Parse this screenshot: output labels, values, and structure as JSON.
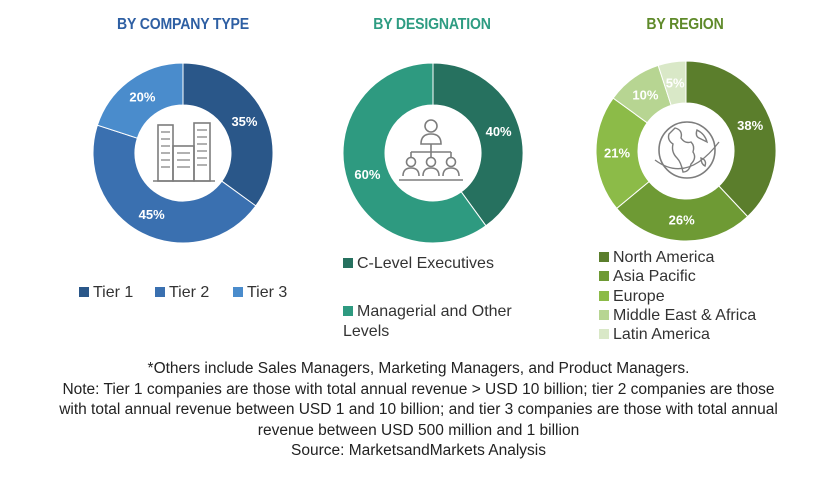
{
  "chart_data": [
    {
      "type": "pie",
      "title": "BY COMPANY TYPE",
      "categories": [
        "Tier 1",
        "Tier 2",
        "Tier 3"
      ],
      "values": [
        35,
        45,
        20
      ],
      "value_labels": [
        "35%",
        "45%",
        "20%"
      ],
      "colors": [
        "#2a5789",
        "#3a70b0",
        "#4a8ccc"
      ],
      "legend": "bottom"
    },
    {
      "type": "pie",
      "title": "BY DESIGNATION",
      "categories": [
        "C-Level Executives",
        "Managerial and Other Levels"
      ],
      "values": [
        40,
        60
      ],
      "value_labels": [
        "40%",
        "60%"
      ],
      "colors": [
        "#26715f",
        "#2e9a80"
      ],
      "legend": "bottom"
    },
    {
      "type": "pie",
      "title": "BY REGION",
      "categories": [
        "North America",
        "Asia Pacific",
        "Europe",
        "Middle East & Africa",
        "Latin America"
      ],
      "values": [
        38,
        26,
        21,
        10,
        5
      ],
      "value_labels": [
        "38%",
        "26%",
        "21%",
        "10%",
        "5%"
      ],
      "colors": [
        "#5b7e2c",
        "#6e9a34",
        "#8cbb48",
        "#b7d592",
        "#d9e8c7"
      ],
      "legend": "right-bottom"
    }
  ],
  "legend_labels": {
    "tier1": "Tier 1",
    "tier2": "Tier 2",
    "tier3": "Tier 3",
    "clevel": "C-Level Executives",
    "managerial_line1": "Managerial and Other",
    "managerial_line2": "Levels",
    "north_america": "North America",
    "asia_pacific": "Asia Pacific",
    "europe": "Europe",
    "mea": "Middle East & Africa",
    "latin_america": "Latin America"
  },
  "notes": {
    "line1": "*Others include Sales Managers, Marketing Managers, and Product Managers.",
    "line2": "Note: Tier 1 companies are those with total annual revenue > USD 10 billion; tier 2 companies are those",
    "line3": "with total annual revenue between USD 1 and 10 billion; and tier 3 companies are those with total annual",
    "line4": "revenue between USD 500 million and 1 billion",
    "line5": "Source: MarketsandMarkets Analysis"
  },
  "icons": {
    "chart1_center": "buildings-icon",
    "chart2_center": "org-hierarchy-icon",
    "chart3_center": "globe-icon"
  }
}
